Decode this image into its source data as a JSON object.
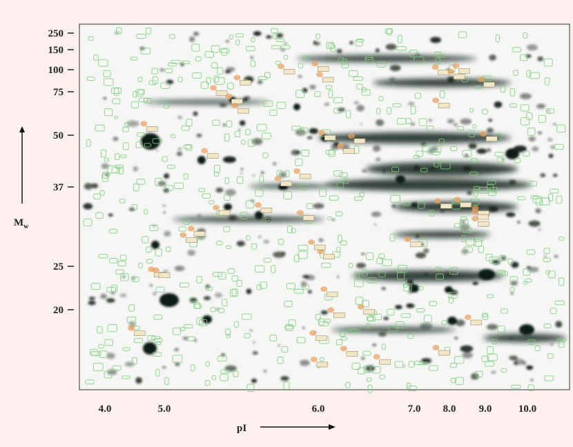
{
  "figure": {
    "y_axis": {
      "label": "M",
      "label_subscript": "w",
      "ticks": [
        "250",
        "150",
        "100",
        "75",
        "50",
        "37",
        "25",
        "20"
      ]
    },
    "x_axis": {
      "label": "pI",
      "ticks": [
        "4.0",
        "5.0",
        "6.0",
        "7.0",
        "8.0",
        "9.0",
        "10.0"
      ]
    }
  }
}
